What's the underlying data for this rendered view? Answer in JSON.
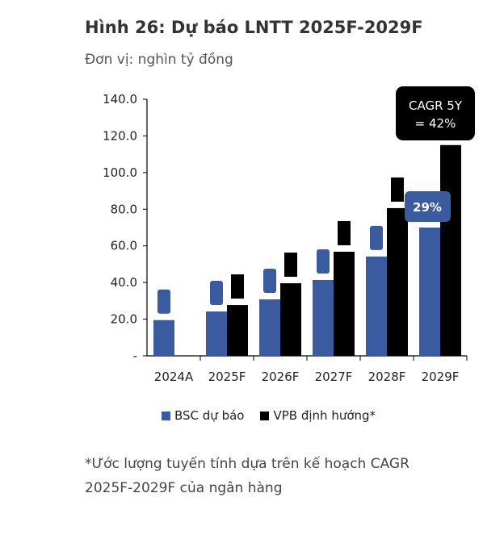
{
  "title": "Hình 26: Dự báo LNTT 2025F-2029F",
  "subtitle": "Đơn vị: nghìn tỷ đồng",
  "note_line1": "*Ước lượng tuyến tính dựa trên kế hoạch CAGR",
  "note_line2": "2025F-2029F của ngân hàng",
  "chart_data": {
    "type": "bar",
    "categories": [
      "2024A",
      "2025F",
      "2026F",
      "2027F",
      "2028F",
      "2029F"
    ],
    "series": [
      {
        "name": "BSC dự báo",
        "color": "#3A5BA0",
        "values": [
          19.5,
          24.2,
          30.8,
          41.4,
          54.2,
          70.0
        ]
      },
      {
        "name": "VPB định hướng*",
        "color": "#000000",
        "values": [
          null,
          27.7,
          39.6,
          56.8,
          80.6,
          115.0
        ]
      }
    ],
    "ylim": [
      0,
      140
    ],
    "yticks": [
      0,
      20,
      40,
      60,
      80,
      100,
      120,
      140
    ],
    "ytick_labels": [
      "-",
      "20.0",
      "40.0",
      "60.0",
      "80.0",
      "100.0",
      "120.0",
      "140.0"
    ],
    "annotations": [
      {
        "text": "29%",
        "series": "BSC dự báo",
        "category": "2029F",
        "color": "#3A5BA0"
      },
      {
        "text": "CAGR 5Y\n= 42%",
        "line1": "CAGR 5Y",
        "line2": "= 42%",
        "series": "VPB định hướng*",
        "category": "2029F",
        "color": "#000000"
      }
    ],
    "legend_position": "bottom",
    "grid": false
  }
}
